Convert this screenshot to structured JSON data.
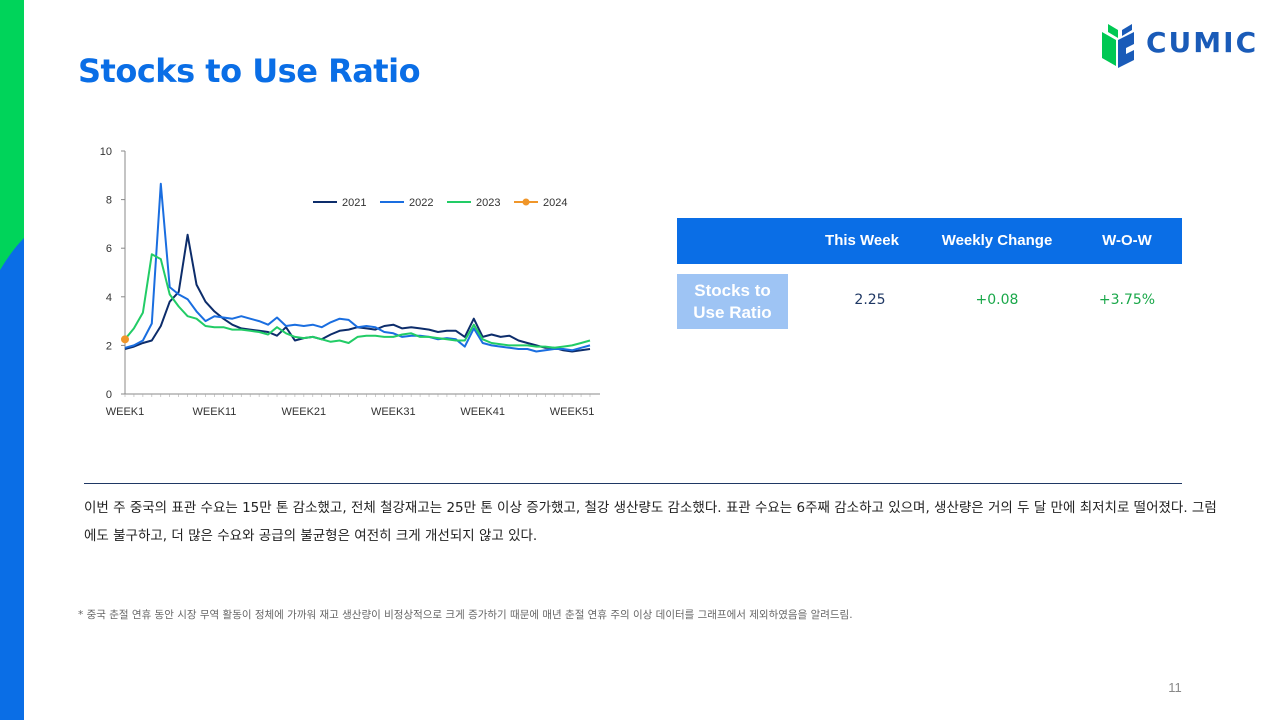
{
  "page": {
    "title": "Stocks to Use Ratio",
    "brand": "CUMIC",
    "page_number": "11",
    "colors": {
      "accent_blue": "#0a6ee6",
      "side_green": "#00d45a",
      "positive": "#1aa84a"
    }
  },
  "table": {
    "headers": [
      "This Week",
      "Weekly Change",
      "W-O-W"
    ],
    "row_label": "Stocks to Use Ratio",
    "values": {
      "this_week": "2.25",
      "weekly_change": "+0.08",
      "wow": "+3.75%"
    }
  },
  "commentary": "이번 주 중국의 표관 수요는 15만 톤 감소했고, 전체 철강재고는 25만 톤 이상 증가했고, 철강 생산량도 감소했다. 표관 수요는 6주째 감소하고 있으며, 생산량은 거의 두 달 만에 최저치로 떨어졌다. 그럼에도 불구하고, 더 많은 수요와 공급의 불균형은 여전히 크게 개선되지 않고 있다.",
  "footnote": "* 중국 춘절 연휴 동안 시장 무역 활동이 정체에 가까워 재고 생산량이 비정상적으로 크게 증가하기 때문에 매년 춘절 연휴 주의 이상 데이터를 그래프에서 제외하였음을 알려드림.",
  "chart_data": {
    "type": "line",
    "title": "",
    "xlabel": "",
    "ylabel": "",
    "ylim": [
      0,
      10
    ],
    "yticks": [
      0,
      2,
      4,
      6,
      8,
      10
    ],
    "xlim": [
      1,
      53
    ],
    "x_tick_labels": [
      "WEEK1",
      "WEEK11",
      "WEEK21",
      "WEEK31",
      "WEEK41",
      "WEEK51"
    ],
    "x_tick_positions": [
      1,
      11,
      21,
      31,
      41,
      51
    ],
    "legend_position": "top-right",
    "grid": false,
    "series": [
      {
        "name": "2021",
        "color": "#0d2d6b",
        "x": [
          1,
          2,
          3,
          4,
          5,
          6,
          7,
          8,
          9,
          10,
          11,
          12,
          13,
          14,
          15,
          16,
          17,
          18,
          19,
          20,
          21,
          22,
          23,
          24,
          25,
          26,
          27,
          28,
          29,
          30,
          31,
          32,
          33,
          34,
          35,
          36,
          37,
          38,
          39,
          40,
          41,
          42,
          43,
          44,
          45,
          46,
          47,
          48,
          49,
          50,
          51,
          52,
          53
        ],
        "values": [
          1.85,
          1.95,
          2.1,
          2.2,
          2.8,
          3.8,
          4.2,
          6.55,
          4.5,
          3.8,
          3.4,
          3.1,
          2.85,
          2.7,
          2.65,
          2.6,
          2.55,
          2.4,
          2.75,
          2.2,
          2.3,
          2.35,
          2.25,
          2.45,
          2.6,
          2.65,
          2.75,
          2.7,
          2.65,
          2.8,
          2.85,
          2.7,
          2.75,
          2.7,
          2.65,
          2.55,
          2.6,
          2.6,
          2.35,
          3.1,
          2.35,
          2.45,
          2.35,
          2.4,
          2.2,
          2.1,
          2.0,
          1.9,
          1.9,
          1.8,
          1.75,
          1.8,
          1.85
        ]
      },
      {
        "name": "2022",
        "color": "#1a6ee0",
        "x": [
          1,
          2,
          3,
          4,
          5,
          6,
          7,
          8,
          9,
          10,
          11,
          12,
          13,
          14,
          15,
          16,
          17,
          18,
          19,
          20,
          21,
          22,
          23,
          24,
          25,
          26,
          27,
          28,
          29,
          30,
          31,
          32,
          33,
          34,
          35,
          36,
          37,
          38,
          39,
          40,
          41,
          42,
          43,
          44,
          45,
          46,
          47,
          48,
          49,
          50,
          51,
          52,
          53
        ],
        "values": [
          1.9,
          2.0,
          2.2,
          2.9,
          8.65,
          4.4,
          4.1,
          3.9,
          3.4,
          3.0,
          3.2,
          3.15,
          3.1,
          3.2,
          3.1,
          3.0,
          2.85,
          3.15,
          2.8,
          2.85,
          2.8,
          2.85,
          2.75,
          2.95,
          3.1,
          3.05,
          2.75,
          2.8,
          2.75,
          2.55,
          2.5,
          2.35,
          2.4,
          2.4,
          2.35,
          2.25,
          2.3,
          2.25,
          1.95,
          2.7,
          2.1,
          2.0,
          1.95,
          1.9,
          1.85,
          1.85,
          1.75,
          1.8,
          1.85,
          1.85,
          1.8,
          1.9,
          2.0
        ]
      },
      {
        "name": "2023",
        "color": "#22cc66",
        "x": [
          1,
          2,
          3,
          4,
          5,
          6,
          7,
          8,
          9,
          10,
          11,
          12,
          13,
          14,
          15,
          16,
          17,
          18,
          19,
          20,
          21,
          22,
          23,
          24,
          25,
          26,
          27,
          28,
          29,
          30,
          31,
          32,
          33,
          34,
          35,
          36,
          37,
          38,
          39,
          40,
          41,
          42,
          43,
          44,
          45,
          46,
          47,
          48,
          49,
          50,
          51,
          52,
          53
        ],
        "values": [
          2.25,
          2.7,
          3.35,
          5.75,
          5.55,
          4.1,
          3.6,
          3.2,
          3.1,
          2.8,
          2.75,
          2.75,
          2.65,
          2.65,
          2.6,
          2.55,
          2.45,
          2.75,
          2.5,
          2.35,
          2.3,
          2.35,
          2.25,
          2.15,
          2.2,
          2.1,
          2.35,
          2.4,
          2.4,
          2.35,
          2.35,
          2.45,
          2.5,
          2.35,
          2.35,
          2.3,
          2.25,
          2.2,
          2.2,
          2.85,
          2.25,
          2.1,
          2.05,
          2.0,
          2.0,
          2.0,
          1.95,
          1.95,
          1.9,
          1.95,
          2.0,
          2.1,
          2.2
        ]
      },
      {
        "name": "2024",
        "color": "#f0962a",
        "x": [
          1
        ],
        "values": [
          2.25
        ]
      }
    ]
  }
}
